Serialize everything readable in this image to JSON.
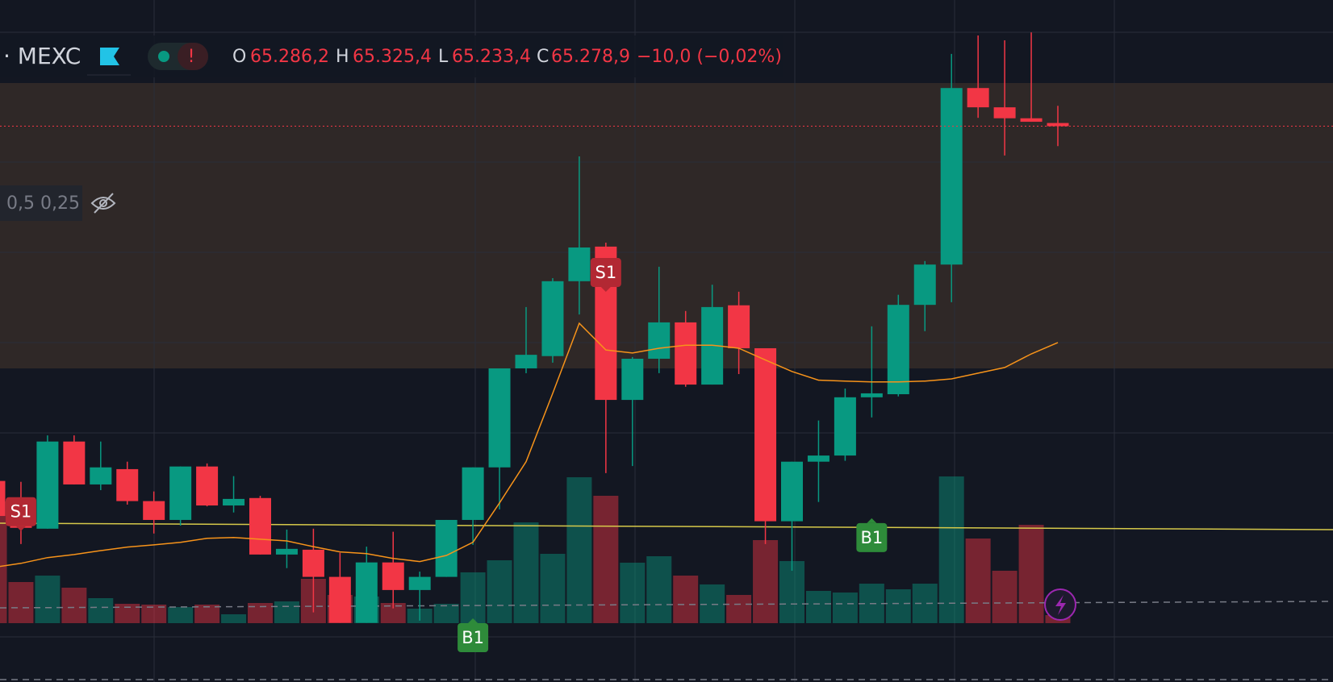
{
  "header": {
    "symbol": "· MEXC",
    "o_label": "O",
    "o": "65.286,2",
    "h_label": "H",
    "h": "65.325,4",
    "l_label": "L",
    "l": "65.233,4",
    "c_label": "C",
    "c": "65.278,9",
    "change": "−10,0 (−0,02%)",
    "status": "!"
  },
  "levels_label": "0,5 0,25",
  "chart_data": {
    "type": "candlestick",
    "ylim": [
      64010,
      65567
    ],
    "up_color": "#089981",
    "down_color": "#f23645",
    "candles": [
      [
        64469,
        64469,
        64380,
        64389
      ],
      [
        64386,
        64467,
        64325,
        64362
      ],
      [
        64360,
        64573,
        64360,
        64559
      ],
      [
        64559,
        64573,
        64461,
        64461
      ],
      [
        64461,
        64559,
        64448,
        64500
      ],
      [
        64496,
        64513,
        64415,
        64423
      ],
      [
        64423,
        64445,
        64349,
        64380
      ],
      [
        64380,
        64502,
        64367,
        64502
      ],
      [
        64502,
        64509,
        64411,
        64413
      ],
      [
        64413,
        64480,
        64397,
        64428
      ],
      [
        64430,
        64435,
        64301,
        64301
      ],
      [
        64301,
        64358,
        64270,
        64314
      ],
      [
        64312,
        64360,
        64169,
        64250
      ],
      [
        64250,
        64305,
        64145,
        64145
      ],
      [
        64145,
        64319,
        64145,
        64283
      ],
      [
        64283,
        64353,
        64178,
        64220
      ],
      [
        64220,
        64262,
        64150,
        64250
      ],
      [
        64250,
        64380,
        64250,
        64380
      ],
      [
        64380,
        64500,
        64323,
        64500
      ],
      [
        64500,
        64726,
        64404,
        64726
      ],
      [
        64726,
        64866,
        64715,
        64757
      ],
      [
        64754,
        64932,
        64739,
        64925
      ],
      [
        64925,
        65210,
        64849,
        65002
      ],
      [
        65004,
        65013,
        64487,
        64654
      ],
      [
        64654,
        64752,
        64503,
        64748
      ],
      [
        64748,
        64958,
        64715,
        64831
      ],
      [
        64831,
        64857,
        64684,
        64689
      ],
      [
        64689,
        64917,
        64689,
        64866
      ],
      [
        64870,
        64901,
        64713,
        64772
      ],
      [
        64772,
        64772,
        64325,
        64377
      ],
      [
        64377,
        64513,
        64264,
        64513
      ],
      [
        64513,
        64607,
        64421,
        64527
      ],
      [
        64527,
        64680,
        64515,
        64660
      ],
      [
        64660,
        64822,
        64614,
        64669
      ],
      [
        64667,
        64894,
        64662,
        64871
      ],
      [
        64871,
        64971,
        64811,
        64963
      ],
      [
        64963,
        65444,
        64877,
        65366
      ],
      [
        65366,
        65486,
        65298,
        65322
      ],
      [
        65322,
        65475,
        65212,
        65297
      ],
      [
        65297,
        65493,
        65289,
        65289
      ],
      [
        65286.2,
        65325.4,
        65233.4,
        65278.9
      ]
    ],
    "volumes": [
      151,
      51,
      59,
      44,
      31,
      24,
      23,
      20,
      23,
      11,
      25,
      27,
      55,
      35,
      33,
      25,
      18,
      24,
      63,
      78,
      125,
      86,
      181,
      158,
      75,
      83,
      59,
      48,
      35,
      103,
      77,
      40,
      38,
      49,
      42,
      49,
      182,
      105,
      65,
      122,
      10
    ],
    "vlim": [
      0,
      400
    ],
    "ma": {
      "color": "#f7931a",
      "values": [
        64272,
        64281,
        64294,
        64301,
        64310,
        64318,
        64323,
        64329,
        64338,
        64340,
        64336,
        64332,
        64319,
        64307,
        64303,
        64292,
        64285,
        64299,
        64329,
        64419,
        64513,
        64669,
        64829,
        64768,
        64761,
        64772,
        64779,
        64779,
        64772,
        64745,
        64719,
        64699,
        64697,
        64695,
        64695,
        64697,
        64702,
        64715,
        64728,
        64759,
        64785
      ]
    },
    "signals": [
      null,
      "S1",
      null,
      null,
      null,
      null,
      null,
      null,
      null,
      null,
      null,
      null,
      null,
      null,
      null,
      null,
      null,
      null,
      "B1",
      null,
      null,
      null,
      null,
      "S1",
      null,
      null,
      null,
      null,
      null,
      null,
      null,
      null,
      null,
      "B1",
      null,
      null,
      null,
      null,
      null,
      null,
      null
    ],
    "sell_color": "#b22833",
    "buy_color": "#2e8b3a"
  }
}
